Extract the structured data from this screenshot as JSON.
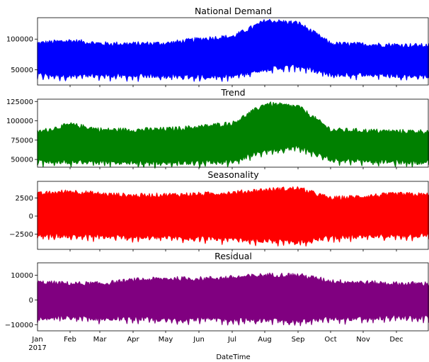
{
  "chart_data": [
    {
      "type": "area",
      "title": "National Demand",
      "color": "#0000ff",
      "ylim": [
        25000,
        135000
      ],
      "yticks": [
        50000,
        100000
      ],
      "ytick_labels": [
        "50000",
        "100000"
      ],
      "series": [
        {
          "values_upper": [
            93000,
            97000,
            92000,
            92000,
            93000,
            100000,
            104000,
            130000,
            126000,
            92000,
            91000,
            90000,
            89000
          ],
          "values_lower": [
            42000,
            40000,
            41000,
            40000,
            40000,
            39000,
            40000,
            52000,
            56000,
            42000,
            43000,
            41000,
            40000
          ]
        }
      ]
    },
    {
      "type": "area",
      "title": "Trend",
      "color": "#008000",
      "ylim": [
        40000,
        128000
      ],
      "yticks": [
        50000,
        75000,
        100000,
        125000
      ],
      "ytick_labels": [
        "50000",
        "75000",
        "100000",
        "125000"
      ],
      "series": [
        {
          "values_upper": [
            85000,
            95000,
            88000,
            88000,
            89000,
            92000,
            97000,
            122000,
            118000,
            88000,
            87000,
            86000,
            86000
          ],
          "values_lower": [
            48000,
            47000,
            47000,
            46000,
            46000,
            47000,
            48000,
            62000,
            66000,
            50000,
            49000,
            47000,
            47000
          ]
        }
      ]
    },
    {
      "type": "area",
      "title": "Seasonality",
      "color": "#ff0000",
      "ylim": [
        -4600,
        4800
      ],
      "yticks": [
        -2500,
        0,
        2500
      ],
      "ytick_labels": [
        "−2500",
        "0",
        "2500"
      ],
      "series": [
        {
          "values_upper": [
            3000,
            3400,
            3000,
            2800,
            2900,
            3000,
            3200,
            3600,
            3800,
            2400,
            2700,
            3000,
            2900
          ],
          "values_lower": [
            -2600,
            -2700,
            -2800,
            -2900,
            -2900,
            -3000,
            -3200,
            -3400,
            -3500,
            -2900,
            -2800,
            -2700,
            -2600
          ]
        }
      ]
    },
    {
      "type": "area",
      "title": "Residual",
      "color": "#800080",
      "ylim": [
        -12500,
        15000
      ],
      "yticks": [
        -10000,
        0,
        10000
      ],
      "ytick_labels": [
        "−10000",
        "0",
        "10000"
      ],
      "series": [
        {
          "values_upper": [
            7000,
            6500,
            6500,
            8000,
            8500,
            8500,
            9000,
            10000,
            10000,
            7500,
            7000,
            6500,
            6500
          ],
          "values_lower": [
            -7500,
            -7000,
            -7500,
            -7500,
            -8000,
            -7500,
            -8000,
            -8000,
            -8500,
            -7500,
            -7500,
            -7000,
            -7000
          ]
        }
      ]
    }
  ],
  "x_axis": {
    "xlabel": "DateTime",
    "tick_labels": [
      "Jan",
      "Feb",
      "Mar",
      "Apr",
      "May",
      "Jun",
      "Jul",
      "Aug",
      "Sep",
      "Oct",
      "Nov",
      "Dec"
    ],
    "year_label": "2017"
  }
}
